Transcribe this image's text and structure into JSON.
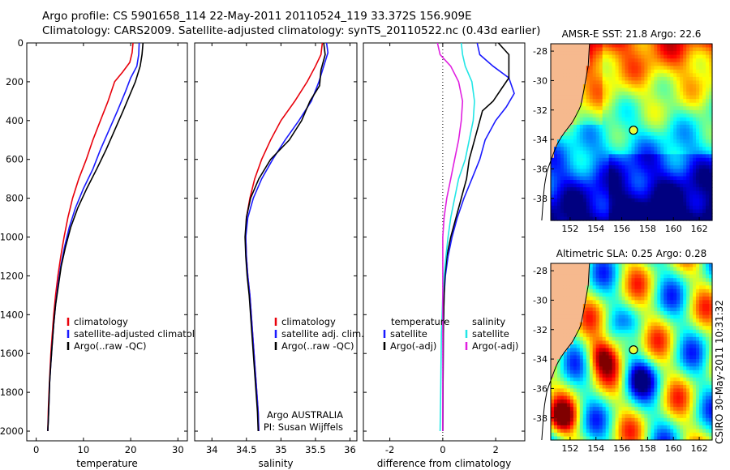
{
  "header": {
    "line1": "Argo profile: CS 5901658_114 22-May-2011 20110524_119 33.372S 156.909E",
    "line2": "Climatology: CARS2009. Satellite-adjusted climatology: synTS_20110522.nc (0.43d earlier)"
  },
  "side_label": "CSIRO 30-May-2011 10:31:32",
  "colors": {
    "climatology": "#e8000b",
    "satellite": "#1a1aff",
    "argo": "#000000",
    "sat_diff": "#22e6e6",
    "argo_diff": "#e020e0",
    "land": "#f6b98e"
  },
  "chart_data": [
    {
      "type": "line",
      "id": "temperature",
      "xlabel": "temperature",
      "ylabel": "",
      "xlim": [
        -2,
        32
      ],
      "ylim": [
        2050,
        0
      ],
      "xticks": [
        0,
        10,
        20,
        30
      ],
      "yticks": [
        0,
        200,
        400,
        600,
        800,
        1000,
        1200,
        1400,
        1600,
        1800,
        2000
      ],
      "legend": {
        "location": "lower-right",
        "entries": [
          "climatology",
          "satellite-adjusted climatology",
          "Argo(..raw -QC)"
        ]
      },
      "series": [
        {
          "name": "climatology",
          "color": "climatology",
          "points": [
            [
              20.5,
              0
            ],
            [
              20.3,
              50
            ],
            [
              19.8,
              100
            ],
            [
              18.3,
              150
            ],
            [
              16.6,
              200
            ],
            [
              15.2,
              300
            ],
            [
              13.6,
              400
            ],
            [
              12.0,
              500
            ],
            [
              10.6,
              600
            ],
            [
              9.0,
              700
            ],
            [
              7.7,
              800
            ],
            [
              6.7,
              900
            ],
            [
              5.9,
              1000
            ],
            [
              5.2,
              1100
            ],
            [
              4.6,
              1200
            ],
            [
              4.1,
              1300
            ],
            [
              3.7,
              1400
            ],
            [
              3.4,
              1500
            ],
            [
              3.1,
              1600
            ],
            [
              2.9,
              1700
            ],
            [
              2.7,
              1800
            ],
            [
              2.55,
              1900
            ],
            [
              2.45,
              2000
            ]
          ]
        },
        {
          "name": "satellite-adjusted climatology",
          "color": "satellite",
          "points": [
            [
              21.8,
              0
            ],
            [
              21.7,
              60
            ],
            [
              21.3,
              120
            ],
            [
              20.0,
              180
            ],
            [
              18.9,
              250
            ],
            [
              17.2,
              350
            ],
            [
              15.4,
              450
            ],
            [
              13.6,
              550
            ],
            [
              12.0,
              650
            ],
            [
              10.0,
              750
            ],
            [
              8.3,
              850
            ],
            [
              7.0,
              950
            ],
            [
              6.0,
              1050
            ],
            [
              5.2,
              1150
            ],
            [
              4.6,
              1250
            ],
            [
              4.1,
              1350
            ],
            [
              3.7,
              1450
            ],
            [
              3.4,
              1550
            ],
            [
              3.1,
              1650
            ],
            [
              2.85,
              1750
            ],
            [
              2.7,
              1850
            ],
            [
              2.55,
              1950
            ],
            [
              2.45,
              2000
            ]
          ]
        },
        {
          "name": "Argo(..raw -QC)",
          "color": "argo",
          "points": [
            [
              22.6,
              0
            ],
            [
              22.4,
              60
            ],
            [
              22.0,
              120
            ],
            [
              21.0,
              200
            ],
            [
              19.6,
              280
            ],
            [
              18.4,
              350
            ],
            [
              16.6,
              450
            ],
            [
              14.8,
              550
            ],
            [
              12.8,
              650
            ],
            [
              10.7,
              750
            ],
            [
              8.8,
              850
            ],
            [
              7.3,
              950
            ],
            [
              6.2,
              1050
            ],
            [
              5.3,
              1150
            ],
            [
              4.7,
              1250
            ],
            [
              4.1,
              1350
            ],
            [
              3.7,
              1450
            ],
            [
              3.4,
              1550
            ],
            [
              3.1,
              1650
            ],
            [
              2.85,
              1750
            ],
            [
              2.7,
              1850
            ],
            [
              2.55,
              1950
            ],
            [
              2.45,
              2000
            ]
          ]
        }
      ]
    },
    {
      "type": "line",
      "id": "salinity",
      "xlabel": "salinity",
      "ylabel": "",
      "xlim": [
        33.75,
        36.1
      ],
      "ylim": [
        2050,
        0
      ],
      "xticks": [
        34,
        34.5,
        35,
        35.5,
        36
      ],
      "xtick_labels": [
        "34",
        "34.5",
        "35",
        "35.5",
        "36"
      ],
      "legend": {
        "location": "lower-right",
        "entries": [
          "climatology",
          "satellite adj. clim.",
          "Argo(..raw -QC)"
        ]
      },
      "annotation": [
        "Argo AUSTRALIA",
        "PI: Susan Wijffels"
      ],
      "series": [
        {
          "name": "climatology",
          "color": "climatology",
          "points": [
            [
              35.6,
              0
            ],
            [
              35.58,
              60
            ],
            [
              35.5,
              120
            ],
            [
              35.38,
              200
            ],
            [
              35.2,
              300
            ],
            [
              35.0,
              400
            ],
            [
              34.85,
              500
            ],
            [
              34.72,
              600
            ],
            [
              34.62,
              700
            ],
            [
              34.55,
              800
            ],
            [
              34.5,
              900
            ],
            [
              34.49,
              1000
            ],
            [
              34.5,
              1100
            ],
            [
              34.52,
              1200
            ],
            [
              34.55,
              1300
            ],
            [
              34.57,
              1400
            ],
            [
              34.59,
              1500
            ],
            [
              34.61,
              1600
            ],
            [
              34.63,
              1700
            ],
            [
              34.65,
              1800
            ],
            [
              34.67,
              1900
            ],
            [
              34.68,
              2000
            ]
          ]
        },
        {
          "name": "satellite adj. clim.",
          "color": "satellite",
          "points": [
            [
              35.66,
              0
            ],
            [
              35.68,
              50
            ],
            [
              35.62,
              120
            ],
            [
              35.55,
              200
            ],
            [
              35.44,
              300
            ],
            [
              35.26,
              400
            ],
            [
              35.06,
              500
            ],
            [
              34.88,
              600
            ],
            [
              34.72,
              700
            ],
            [
              34.6,
              800
            ],
            [
              34.52,
              900
            ],
            [
              34.49,
              1000
            ],
            [
              34.5,
              1100
            ],
            [
              34.52,
              1200
            ],
            [
              34.55,
              1300
            ],
            [
              34.57,
              1400
            ],
            [
              34.59,
              1500
            ],
            [
              34.61,
              1600
            ],
            [
              34.63,
              1700
            ],
            [
              34.65,
              1800
            ],
            [
              34.67,
              1900
            ],
            [
              34.68,
              2000
            ]
          ]
        },
        {
          "name": "Argo(..raw -QC)",
          "color": "argo",
          "points": [
            [
              35.62,
              0
            ],
            [
              35.64,
              60
            ],
            [
              35.58,
              140
            ],
            [
              35.56,
              220
            ],
            [
              35.42,
              300
            ],
            [
              35.3,
              400
            ],
            [
              35.12,
              500
            ],
            [
              34.85,
              600
            ],
            [
              34.68,
              700
            ],
            [
              34.56,
              800
            ],
            [
              34.5,
              900
            ],
            [
              34.48,
              1000
            ],
            [
              34.49,
              1100
            ],
            [
              34.51,
              1200
            ],
            [
              34.54,
              1300
            ],
            [
              34.56,
              1400
            ],
            [
              34.58,
              1500
            ],
            [
              34.6,
              1600
            ],
            [
              34.62,
              1700
            ],
            [
              34.64,
              1800
            ],
            [
              34.66,
              1900
            ],
            [
              34.67,
              2000
            ]
          ]
        }
      ]
    },
    {
      "type": "line",
      "id": "difference",
      "xlabel": "difference from climatology",
      "ylabel": "",
      "xlim": [
        -3,
        3.1
      ],
      "ylim": [
        2050,
        0
      ],
      "xticks": [
        -2,
        0,
        2
      ],
      "legend": {
        "location": "lower-center",
        "entries": [
          "temperature",
          "satellite",
          "Argo(-adj)",
          "salinity",
          "satellite",
          "Argo(-adj)"
        ]
      },
      "series": [
        {
          "name": "satellite",
          "group": "temperature",
          "color": "satellite",
          "points": [
            [
              1.3,
              0
            ],
            [
              1.4,
              60
            ],
            [
              1.9,
              120
            ],
            [
              2.5,
              180
            ],
            [
              2.7,
              260
            ],
            [
              2.4,
              330
            ],
            [
              2.0,
              400
            ],
            [
              1.6,
              500
            ],
            [
              1.4,
              600
            ],
            [
              1.1,
              700
            ],
            [
              0.8,
              800
            ],
            [
              0.55,
              900
            ],
            [
              0.35,
              1000
            ],
            [
              0.2,
              1100
            ],
            [
              0.1,
              1200
            ],
            [
              0.05,
              1300
            ],
            [
              0.02,
              1500
            ],
            [
              0.0,
              2000
            ]
          ]
        },
        {
          "name": "Argo(-adj)",
          "group": "temperature",
          "color": "argo",
          "points": [
            [
              2.1,
              0
            ],
            [
              2.5,
              60
            ],
            [
              2.5,
              120
            ],
            [
              2.5,
              180
            ],
            [
              2.2,
              240
            ],
            [
              1.9,
              300
            ],
            [
              1.5,
              350
            ],
            [
              1.3,
              450
            ],
            [
              1.1,
              550
            ],
            [
              1.0,
              600
            ],
            [
              0.9,
              700
            ],
            [
              0.7,
              800
            ],
            [
              0.5,
              900
            ],
            [
              0.3,
              1000
            ],
            [
              0.15,
              1100
            ],
            [
              0.08,
              1200
            ],
            [
              0.05,
              1300
            ],
            [
              0.02,
              1500
            ],
            [
              0.0,
              2000
            ]
          ]
        },
        {
          "name": "satellite",
          "group": "salinity",
          "color": "sat_diff",
          "points": [
            [
              0.7,
              0
            ],
            [
              0.75,
              60
            ],
            [
              0.85,
              120
            ],
            [
              1.1,
              200
            ],
            [
              1.2,
              300
            ],
            [
              1.15,
              400
            ],
            [
              1.0,
              500
            ],
            [
              0.85,
              600
            ],
            [
              0.6,
              700
            ],
            [
              0.45,
              800
            ],
            [
              0.3,
              900
            ],
            [
              0.2,
              1000
            ],
            [
              0.12,
              1100
            ],
            [
              0.05,
              1200
            ],
            [
              0.0,
              1300
            ],
            [
              -0.05,
              1500
            ],
            [
              -0.08,
              1800
            ],
            [
              -0.1,
              2000
            ]
          ]
        },
        {
          "name": "Argo(-adj)",
          "group": "salinity",
          "color": "argo_diff",
          "points": [
            [
              -0.2,
              0
            ],
            [
              -0.1,
              60
            ],
            [
              0.3,
              120
            ],
            [
              0.6,
              200
            ],
            [
              0.75,
              300
            ],
            [
              0.7,
              400
            ],
            [
              0.6,
              500
            ],
            [
              0.45,
              600
            ],
            [
              0.3,
              700
            ],
            [
              0.15,
              800
            ],
            [
              0.05,
              900
            ],
            [
              0.0,
              1000
            ],
            [
              0.0,
              2000
            ]
          ]
        }
      ]
    },
    {
      "type": "heatmap",
      "id": "sst-map",
      "title": "AMSR-E SST: 21.8 Argo: 22.6",
      "xlim": [
        150.5,
        163
      ],
      "ylim": [
        -39.5,
        -27.5
      ],
      "xticks": [
        152,
        154,
        156,
        158,
        160,
        162
      ],
      "yticks": [
        -28,
        -30,
        -32,
        -34,
        -36,
        -38
      ],
      "marker": {
        "lon": 156.909,
        "lat": -33.372
      }
    },
    {
      "type": "heatmap",
      "id": "sla-map",
      "title": "Altimetric SLA: 0.25 Argo: 0.28",
      "xlim": [
        150.5,
        163
      ],
      "ylim": [
        -39.5,
        -27.5
      ],
      "xticks": [
        152,
        154,
        156,
        158,
        160,
        162
      ],
      "yticks": [
        -28,
        -30,
        -32,
        -34,
        -36,
        -38
      ],
      "marker": {
        "lon": 156.909,
        "lat": -33.372
      }
    }
  ]
}
